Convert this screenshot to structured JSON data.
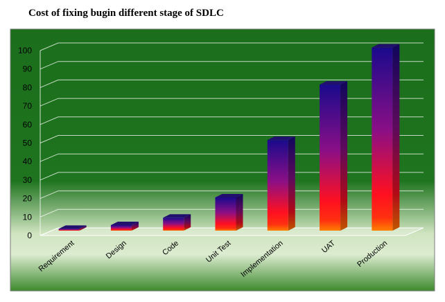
{
  "chart_data": {
    "type": "bar",
    "title": "Cost of fixing bugin different stage of SDLC",
    "categories": [
      "Requirement",
      "Design",
      "Code",
      "Unit Test",
      "Implementation",
      "UAT",
      "Production"
    ],
    "values": [
      1,
      3,
      7,
      18,
      49,
      79,
      99
    ],
    "ylim": [
      0,
      100
    ],
    "yticks": [
      0,
      10,
      20,
      30,
      40,
      50,
      60,
      70,
      80,
      90,
      100
    ],
    "grid": true,
    "legend": "none",
    "colors": {
      "bar_top": "#1a0a8c",
      "bar_mid": "#b0107a",
      "bar_low": "#ff1020",
      "bar_base": "#ff8000",
      "bg_dark": "#1b6e1b",
      "bg_light": "#dfeed0"
    }
  }
}
